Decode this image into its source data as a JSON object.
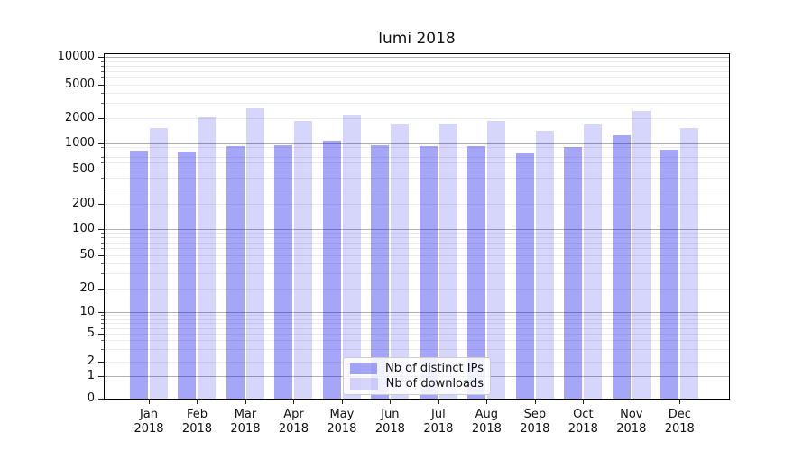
{
  "chart_data": {
    "type": "bar",
    "title": "lumi 2018",
    "categories": [
      "Jan 2018",
      "Feb 2018",
      "Mar 2018",
      "Apr 2018",
      "May 2018",
      "Jun 2018",
      "Jul 2018",
      "Aug 2018",
      "Sep 2018",
      "Oct 2018",
      "Nov 2018",
      "Dec 2018"
    ],
    "series": [
      {
        "name": "Nb of distinct IPs",
        "key": "distinct-ips",
        "color": "rgba(0,0,238,0.35)",
        "values": [
          820,
          800,
          930,
          940,
          1060,
          945,
          920,
          930,
          760,
          910,
          1240,
          840
        ]
      },
      {
        "name": "Nb of downloads",
        "key": "downloads",
        "color": "rgba(0,0,238,0.16)",
        "values": [
          1500,
          2040,
          2620,
          1840,
          2150,
          1690,
          1700,
          1870,
          1400,
          1670,
          2440,
          1510
        ]
      }
    ],
    "xlabel": "",
    "ylabel": "",
    "yscale": "symlog",
    "ylim": [
      0,
      10000
    ],
    "yticks": [
      0,
      1,
      2,
      5,
      10,
      20,
      50,
      100,
      200,
      500,
      1000,
      2000,
      5000,
      10000
    ],
    "grid": {
      "orientation": "horizontal",
      "major_color": "#b0b0b0",
      "minor_color": "#ebebeb"
    },
    "legend_position": "lower center",
    "axis_color": "#000000",
    "text_color": "#111111"
  }
}
